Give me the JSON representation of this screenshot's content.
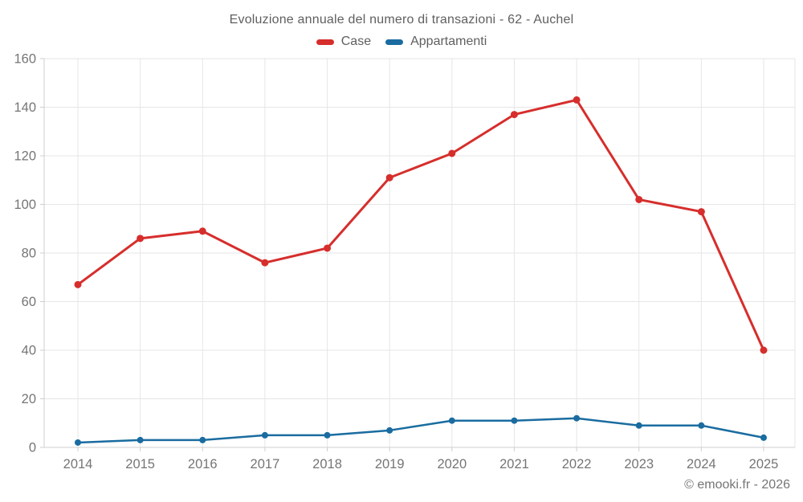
{
  "chart_data": {
    "type": "line",
    "title": "Evoluzione annuale del numero di transazioni - 62 - Auchel",
    "categories": [
      "2014",
      "2015",
      "2016",
      "2017",
      "2018",
      "2019",
      "2020",
      "2021",
      "2022",
      "2023",
      "2024",
      "2025"
    ],
    "series": [
      {
        "name": "Case",
        "color": "#d62e2c",
        "values": [
          67,
          86,
          89,
          76,
          82,
          111,
          121,
          137,
          143,
          102,
          97,
          40
        ]
      },
      {
        "name": "Appartamenti",
        "color": "#1a6ca0",
        "values": [
          2,
          3,
          3,
          5,
          5,
          7,
          11,
          11,
          12,
          9,
          9,
          4
        ]
      }
    ],
    "xlabel": "",
    "ylabel": "",
    "ylim": [
      0,
      160
    ],
    "ytick_step": 20,
    "grid": true,
    "legend_position": "top"
  },
  "footer": {
    "copyright": "© emooki.fr - 2026"
  },
  "colors": {
    "grid": "#e6e6e6",
    "axis": "#cfcfcf",
    "tick_label": "#757575",
    "title_text": "#5f5f5f",
    "background": "#ffffff"
  }
}
